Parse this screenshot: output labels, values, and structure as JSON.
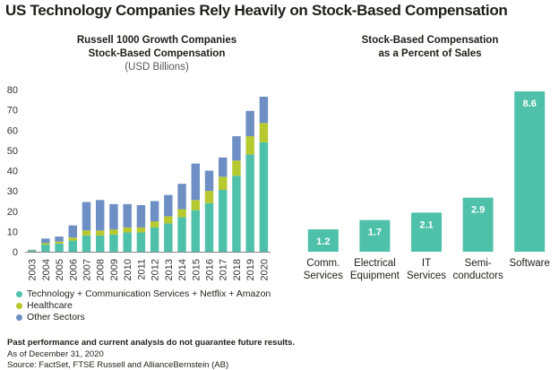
{
  "title": "US Technology Companies Rely Heavily on Stock-Based Compensation",
  "left_chart": {
    "title_line1": "Russell 1000 Growth Companies",
    "title_line2": "Stock-Based Compensation",
    "subtitle": "(USD Billions)"
  },
  "right_chart": {
    "title_line1": "Stock-Based Compensation",
    "title_line2": "as a Percent of Sales"
  },
  "legend": [
    {
      "label": "Technology + Communication Services + Netflix + Amazon",
      "color": "#4fc1aa"
    },
    {
      "label": "Healthcare",
      "color": "#b6c92f"
    },
    {
      "label": "Other Sectors",
      "color": "#6e8fc4"
    }
  ],
  "footer": {
    "disclaimer": "Past performance and current analysis do not guarantee future results.",
    "as_of": "As of December 31, 2020",
    "source": "Source: FactSet, FTSE Russell and AllianceBernstein (AB)"
  },
  "chart_data": [
    {
      "type": "bar",
      "stacked": true,
      "title": "Russell 1000 Growth Companies Stock-Based Compensation",
      "subtitle": "(USD Billions)",
      "categories": [
        "2003",
        "2004",
        "2005",
        "2006",
        "2007",
        "2008",
        "2009",
        "2010",
        "2011",
        "2012",
        "2013",
        "2014",
        "2015",
        "2016",
        "2017",
        "2018",
        "2019",
        "2020"
      ],
      "series": [
        {
          "name": "Technology + Communication Services + Netflix + Amazon",
          "color": "#4fc1aa",
          "values": [
            0.5,
            3.5,
            4,
            5.5,
            8,
            8,
            8.5,
            9.5,
            9.5,
            12,
            14,
            17,
            20.5,
            24,
            30.5,
            37.5,
            48,
            54
          ]
        },
        {
          "name": "Healthcare",
          "color": "#b6c92f",
          "values": [
            0.2,
            0.8,
            1,
            1.5,
            2.5,
            2.5,
            2.5,
            2.5,
            2.5,
            3,
            3.5,
            4,
            5,
            6,
            6.5,
            7.5,
            9,
            9.5
          ]
        },
        {
          "name": "Other Sectors",
          "color": "#6e8fc4",
          "values": [
            0.3,
            2.2,
            2.5,
            6,
            14,
            15,
            12.5,
            11.5,
            11,
            10,
            10.5,
            12.5,
            18,
            10,
            9.5,
            12,
            12.5,
            13
          ]
        }
      ],
      "ylim": [
        0,
        80
      ],
      "yticks": [
        0,
        10,
        20,
        30,
        40,
        50,
        60,
        70,
        80
      ]
    },
    {
      "type": "bar",
      "title": "Stock-Based Compensation as a Percent of Sales",
      "categories": [
        "Comm. Services",
        "Electrical Equipment",
        "IT Services",
        "Semi-conductors",
        "Software"
      ],
      "category_lines": [
        [
          "Comm.",
          "Services"
        ],
        [
          "Electrical",
          "Equipment"
        ],
        [
          "IT",
          "Services"
        ],
        [
          "Semi-",
          "conductors"
        ],
        [
          "Software"
        ]
      ],
      "values": [
        1.2,
        1.7,
        2.1,
        2.9,
        8.6
      ],
      "data_labels": [
        "1.2",
        "1.7",
        "2.1",
        "2.9",
        "8.6"
      ],
      "color": "#4fc1aa"
    }
  ]
}
